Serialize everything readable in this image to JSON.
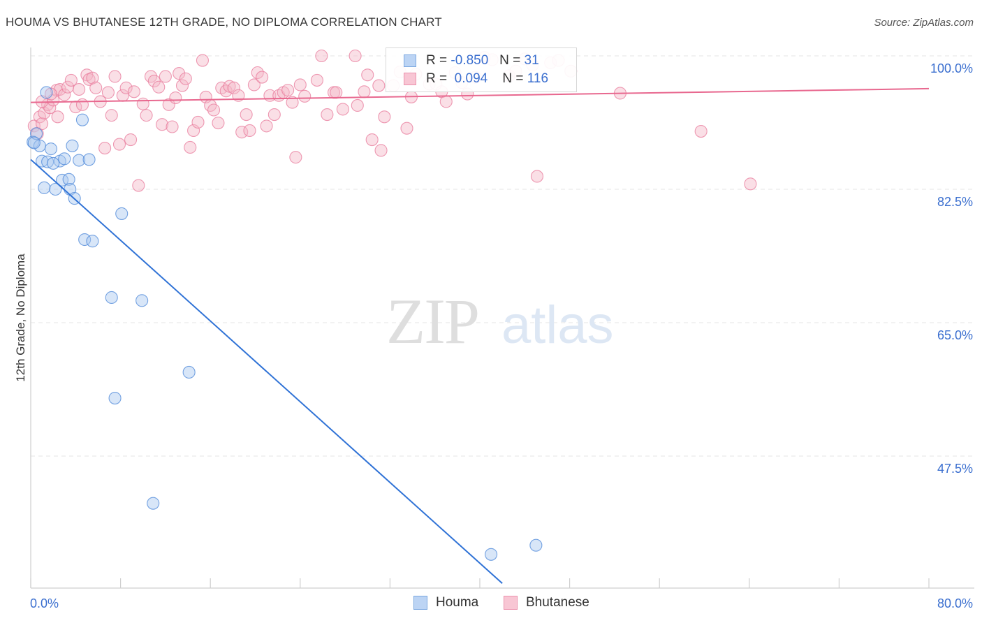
{
  "title": "HOUMA VS BHUTANESE 12TH GRADE, NO DIPLOMA CORRELATION CHART",
  "source": "Source: ZipAtlas.com",
  "watermark": {
    "zip": "ZIP",
    "atlas": "atlas"
  },
  "legend": {
    "rows": [
      {
        "r_label": "R =",
        "r_value": "-0.850",
        "n_label": "N =",
        "n_value": "31",
        "color": "#a9c8f0"
      },
      {
        "r_label": "R =",
        "r_value": "0.094",
        "n_label": "N =",
        "n_value": "116",
        "color": "#f5b8c8"
      }
    ]
  },
  "bottom_legend": [
    {
      "label": "Houma",
      "color": "#a9c8f0"
    },
    {
      "label": "Bhutanese",
      "color": "#f5b8c8"
    }
  ],
  "chart_data": {
    "type": "scatter",
    "title": "HOUMA VS BHUTANESE 12TH GRADE, NO DIPLOMA CORRELATION CHART",
    "xlabel": "",
    "ylabel": "12th Grade, No Diploma",
    "xlim": [
      0,
      80
    ],
    "ylim": [
      32,
      102
    ],
    "x_tick_labels": [
      "0.0%",
      "80.0%"
    ],
    "y_ticks": [
      47.5,
      65.0,
      82.5,
      100.0
    ],
    "y_tick_labels": [
      "47.5%",
      "65.0%",
      "82.5%",
      "100.0%"
    ],
    "grid": true,
    "series": [
      {
        "name": "Houma",
        "color": "#a9c8f0",
        "edge": "#4a86d8",
        "line_color": "#2f72d6",
        "trend": {
          "x": [
            0,
            42
          ],
          "y": [
            86.4,
            30.8
          ]
        },
        "points": [
          [
            0.2,
            88.7
          ],
          [
            0.5,
            89.8
          ],
          [
            0.8,
            88.2
          ],
          [
            1.0,
            86.2
          ],
          [
            1.4,
            95.2
          ],
          [
            1.5,
            86.1
          ],
          [
            1.2,
            82.7
          ],
          [
            1.8,
            87.8
          ],
          [
            2.2,
            82.5
          ],
          [
            2.6,
            86.2
          ],
          [
            2.8,
            83.7
          ],
          [
            3.0,
            86.5
          ],
          [
            3.4,
            83.8
          ],
          [
            3.5,
            82.5
          ],
          [
            3.7,
            88.2
          ],
          [
            3.9,
            81.3
          ],
          [
            4.3,
            86.3
          ],
          [
            4.6,
            91.6
          ],
          [
            4.8,
            75.9
          ],
          [
            5.2,
            86.4
          ],
          [
            5.5,
            75.7
          ],
          [
            7.2,
            68.3
          ],
          [
            7.5,
            55.1
          ],
          [
            8.1,
            79.3
          ],
          [
            9.9,
            67.9
          ],
          [
            10.9,
            41.3
          ],
          [
            14.1,
            58.5
          ],
          [
            41.0,
            34.6
          ],
          [
            45.0,
            35.8
          ],
          [
            0.3,
            88.6
          ],
          [
            2.0,
            85.9
          ]
        ]
      },
      {
        "name": "Bhutanese",
        "color": "#f5b8c8",
        "edge": "#e8799b",
        "line_color": "#e8688f",
        "trend": {
          "x": [
            0,
            80
          ],
          "y": [
            93.9,
            95.7
          ]
        },
        "points": [
          [
            0.3,
            90.8
          ],
          [
            0.6,
            89.8
          ],
          [
            0.8,
            92.0
          ],
          [
            1.0,
            91.1
          ],
          [
            1.2,
            92.5
          ],
          [
            1.5,
            93.6
          ],
          [
            1.7,
            93.2
          ],
          [
            2.0,
            94.2
          ],
          [
            2.3,
            95.5
          ],
          [
            2.6,
            95.6
          ],
          [
            3.0,
            94.9
          ],
          [
            3.3,
            95.9
          ],
          [
            3.6,
            96.8
          ],
          [
            4.0,
            93.3
          ],
          [
            4.3,
            95.6
          ],
          [
            4.6,
            93.6
          ],
          [
            5.0,
            97.5
          ],
          [
            5.2,
            96.9
          ],
          [
            5.5,
            97.1
          ],
          [
            5.8,
            95.8
          ],
          [
            6.2,
            94.0
          ],
          [
            6.6,
            87.9
          ],
          [
            6.9,
            95.2
          ],
          [
            7.2,
            92.2
          ],
          [
            7.5,
            97.3
          ],
          [
            7.9,
            88.4
          ],
          [
            8.2,
            94.8
          ],
          [
            8.5,
            95.8
          ],
          [
            8.9,
            89.0
          ],
          [
            9.2,
            95.3
          ],
          [
            9.6,
            83.0
          ],
          [
            10.0,
            93.7
          ],
          [
            10.3,
            92.2
          ],
          [
            10.7,
            97.3
          ],
          [
            11.0,
            96.7
          ],
          [
            11.4,
            95.9
          ],
          [
            11.7,
            91.0
          ],
          [
            12.0,
            97.3
          ],
          [
            12.3,
            93.6
          ],
          [
            12.6,
            90.7
          ],
          [
            12.9,
            94.5
          ],
          [
            13.2,
            97.7
          ],
          [
            13.5,
            96.1
          ],
          [
            13.8,
            97.0
          ],
          [
            14.2,
            88.0
          ],
          [
            14.5,
            90.2
          ],
          [
            14.9,
            91.3
          ],
          [
            15.3,
            99.4
          ],
          [
            15.6,
            94.6
          ],
          [
            16.0,
            93.5
          ],
          [
            16.3,
            92.9
          ],
          [
            16.7,
            91.2
          ],
          [
            17.0,
            95.8
          ],
          [
            17.4,
            95.4
          ],
          [
            17.7,
            96.0
          ],
          [
            18.1,
            95.8
          ],
          [
            18.5,
            94.8
          ],
          [
            18.8,
            90.0
          ],
          [
            19.2,
            92.3
          ],
          [
            19.5,
            90.2
          ],
          [
            19.9,
            96.2
          ],
          [
            20.2,
            97.8
          ],
          [
            20.6,
            97.2
          ],
          [
            21.0,
            90.8
          ],
          [
            21.3,
            94.8
          ],
          [
            21.7,
            92.3
          ],
          [
            22.1,
            94.8
          ],
          [
            22.5,
            95.2
          ],
          [
            22.9,
            95.5
          ],
          [
            23.3,
            93.9
          ],
          [
            23.6,
            86.7
          ],
          [
            24.0,
            96.2
          ],
          [
            24.4,
            94.7
          ],
          [
            25.5,
            96.8
          ],
          [
            25.9,
            100.0
          ],
          [
            26.4,
            92.3
          ],
          [
            27.0,
            95.2
          ],
          [
            27.2,
            95.2
          ],
          [
            27.8,
            93.0
          ],
          [
            28.9,
            100.0
          ],
          [
            29.1,
            93.5
          ],
          [
            29.7,
            95.3
          ],
          [
            30.4,
            89.0
          ],
          [
            31.0,
            96.1
          ],
          [
            31.2,
            87.6
          ],
          [
            31.5,
            92.0
          ],
          [
            32.3,
            96.1
          ],
          [
            32.9,
            97.9
          ],
          [
            33.5,
            90.5
          ],
          [
            33.9,
            94.6
          ],
          [
            34.3,
            97.6
          ],
          [
            35.5,
            96.3
          ],
          [
            36.1,
            96.3
          ],
          [
            36.6,
            95.3
          ],
          [
            37.0,
            94.0
          ],
          [
            37.8,
            97.8
          ],
          [
            38.4,
            96.5
          ],
          [
            39.6,
            97.2
          ],
          [
            40.4,
            99.8
          ],
          [
            41.1,
            99.5
          ],
          [
            42.6,
            97.4
          ],
          [
            43.2,
            98.0
          ],
          [
            44.0,
            99.6
          ],
          [
            44.7,
            98.8
          ],
          [
            45.1,
            84.2
          ],
          [
            46.3,
            99.1
          ],
          [
            47.0,
            99.4
          ],
          [
            48.1,
            98.0
          ],
          [
            52.5,
            95.1
          ],
          [
            59.7,
            90.1
          ],
          [
            64.1,
            83.2
          ],
          [
            1.0,
            94.0
          ],
          [
            2.4,
            92.0
          ],
          [
            1.8,
            95.0
          ],
          [
            30.0,
            97.5
          ],
          [
            38.9,
            95.0
          ]
        ]
      }
    ]
  }
}
